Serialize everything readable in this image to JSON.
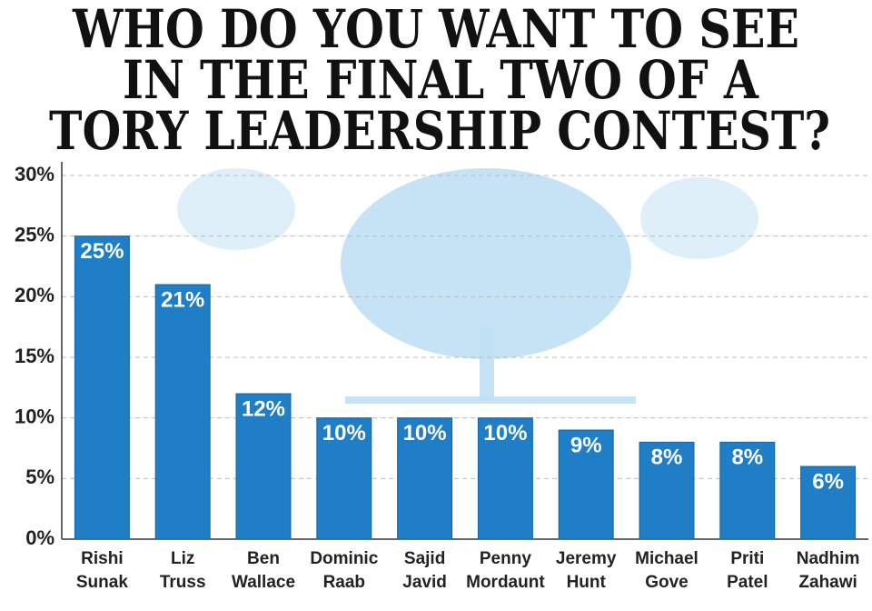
{
  "chart_data": {
    "type": "bar",
    "title": [
      "WHO DO YOU WANT TO SEE",
      "IN THE FINAL TWO OF A",
      "TORY LEADERSHIP CONTEST?"
    ],
    "categories": [
      "Rishi Sunak",
      "Liz Truss",
      "Ben Wallace",
      "Dominic Raab",
      "Sajid Javid",
      "Penny Mordaunt",
      "Jeremy Hunt",
      "Michael Gove",
      "Priti Patel",
      "Nadhim Zahawi"
    ],
    "values": [
      25,
      21,
      12,
      10,
      10,
      10,
      9,
      8,
      8,
      6
    ],
    "value_labels": [
      "25%",
      "21%",
      "12%",
      "10%",
      "10%",
      "10%",
      "9%",
      "8%",
      "8%",
      "6%"
    ],
    "color": "#1f7ec6",
    "ylim": [
      0,
      30
    ],
    "yticks": [
      {
        "value": 0,
        "label": "0%"
      },
      {
        "value": 5,
        "label": "5%"
      },
      {
        "value": 10,
        "label": "10%"
      },
      {
        "value": 15,
        "label": "15%"
      },
      {
        "value": 20,
        "label": "20%"
      },
      {
        "value": 25,
        "label": "25%"
      },
      {
        "value": 30,
        "label": "30%"
      }
    ],
    "grid": true
  }
}
